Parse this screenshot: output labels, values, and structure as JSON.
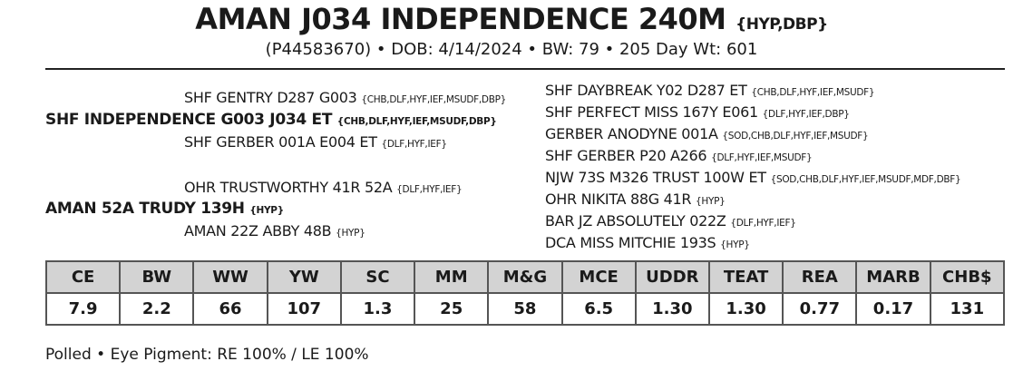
{
  "header": {
    "name": "AMAN J034 INDEPENDENCE 240M",
    "name_tags": "{HYP,DBP}",
    "subtitle": "(P44583670) • DOB: 4/14/2024 • BW: 79 • 205 Day Wt: 601"
  },
  "pedigree": {
    "sire": {
      "name": "SHF INDEPENDENCE G003 J034 ET",
      "tags": "{CHB,DLF,HYF,IEF,MSUDF,DBP}"
    },
    "sire_sire": {
      "name": "SHF GENTRY D287 G003",
      "tags": "{CHB,DLF,HYF,IEF,MSUDF,DBP}"
    },
    "sire_dam": {
      "name": "SHF GERBER 001A E004 ET",
      "tags": "{DLF,HYF,IEF}"
    },
    "dam": {
      "name": "AMAN 52A TRUDY 139H",
      "tags": "{HYP}"
    },
    "dam_sire": {
      "name": "OHR TRUSTWORTHY 41R 52A",
      "tags": "{DLF,HYF,IEF}"
    },
    "dam_dam": {
      "name": "AMAN 22Z ABBY 48B",
      "tags": "{HYP}"
    },
    "third_gen": [
      {
        "name": "SHF DAYBREAK Y02 D287 ET",
        "tags": "{CHB,DLF,HYF,IEF,MSUDF}"
      },
      {
        "name": "SHF PERFECT MISS 167Y E061",
        "tags": "{DLF,HYF,IEF,DBP}"
      },
      {
        "name": "GERBER ANODYNE 001A",
        "tags": "{SOD,CHB,DLF,HYF,IEF,MSUDF}"
      },
      {
        "name": "SHF GERBER P20 A266",
        "tags": "{DLF,HYF,IEF,MSUDF}"
      },
      {
        "name": "NJW 73S M326 TRUST 100W ET",
        "tags": "{SOD,CHB,DLF,HYF,IEF,MSUDF,MDF,DBF}"
      },
      {
        "name": "OHR NIKITA 88G 41R",
        "tags": "{HYP}"
      },
      {
        "name": "BAR JZ ABSOLUTELY 022Z",
        "tags": "{DLF,HYF,IEF}"
      },
      {
        "name": "DCA MISS MITCHIE 193S",
        "tags": "{HYP}"
      }
    ]
  },
  "epds": {
    "headers": [
      "CE",
      "BW",
      "WW",
      "YW",
      "SC",
      "MM",
      "M&G",
      "MCE",
      "UDDR",
      "TEAT",
      "REA",
      "MARB",
      "CHB$"
    ],
    "values": [
      "7.9",
      "2.2",
      "66",
      "107",
      "1.3",
      "25",
      "58",
      "6.5",
      "1.30",
      "1.30",
      "0.77",
      "0.17",
      "131"
    ]
  },
  "footer": "Polled • Eye Pigment: RE 100% / LE 100%"
}
